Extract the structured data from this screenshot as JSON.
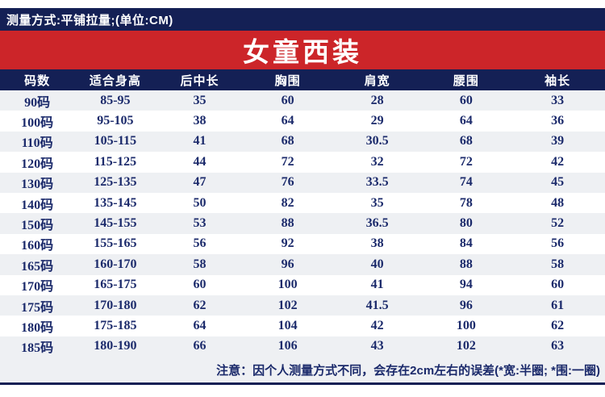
{
  "colors": {
    "navy": "#142055",
    "red": "#cc2529",
    "ink": "#1b2a6b",
    "stripe": "#eef0f3",
    "white": "#ffffff"
  },
  "header": {
    "measure_note": "测量方式:平铺拉量;(单位:CM)",
    "title": "女童西装"
  },
  "table": {
    "columns": [
      "码数",
      "适合身高",
      "后中长",
      "胸围",
      "肩宽",
      "腰围",
      "袖长"
    ],
    "rows": [
      [
        "90码",
        "85-95",
        "35",
        "60",
        "28",
        "60",
        "33"
      ],
      [
        "100码",
        "95-105",
        "38",
        "64",
        "29",
        "64",
        "36"
      ],
      [
        "110码",
        "105-115",
        "41",
        "68",
        "30.5",
        "68",
        "39"
      ],
      [
        "120码",
        "115-125",
        "44",
        "72",
        "32",
        "72",
        "42"
      ],
      [
        "130码",
        "125-135",
        "47",
        "76",
        "33.5",
        "74",
        "45"
      ],
      [
        "140码",
        "135-145",
        "50",
        "82",
        "35",
        "78",
        "48"
      ],
      [
        "150码",
        "145-155",
        "53",
        "88",
        "36.5",
        "80",
        "52"
      ],
      [
        "160码",
        "155-165",
        "56",
        "92",
        "38",
        "84",
        "56"
      ],
      [
        "165码",
        "160-170",
        "58",
        "96",
        "40",
        "88",
        "58"
      ],
      [
        "170码",
        "165-175",
        "60",
        "100",
        "41",
        "94",
        "60"
      ],
      [
        "175码",
        "170-180",
        "62",
        "102",
        "41.5",
        "96",
        "61"
      ],
      [
        "180码",
        "175-185",
        "64",
        "104",
        "42",
        "100",
        "62"
      ],
      [
        "185码",
        "180-190",
        "66",
        "106",
        "43",
        "102",
        "63"
      ]
    ]
  },
  "footer": {
    "note": "注意：因个人测量方式不同，会存在2cm左右的误差(*宽:半圈; *围:一圈)"
  }
}
